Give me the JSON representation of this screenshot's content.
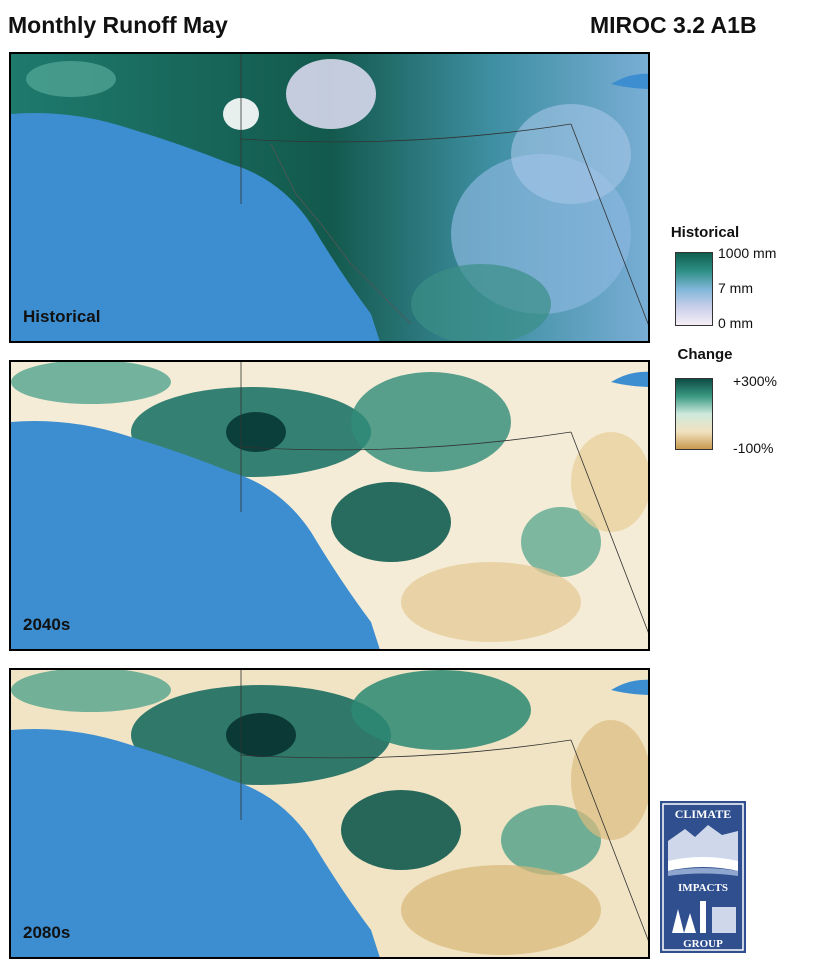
{
  "header": {
    "title": "Monthly Runoff May",
    "model": "MIROC 3.2 A1B"
  },
  "panels": [
    {
      "label": "Historical",
      "scale": "historical"
    },
    {
      "label": "2040s",
      "scale": "change"
    },
    {
      "label": "2080s",
      "scale": "change"
    }
  ],
  "legend": {
    "historical": {
      "title": "Historical",
      "ticks": [
        "1000 mm",
        "7 mm",
        "0 mm"
      ],
      "colors": [
        "#0f5f4e",
        "#2e8f85",
        "#7fb6d8",
        "#c9cfe9",
        "#f6eef7"
      ]
    },
    "change": {
      "title": "Change",
      "ticks": [
        "+300%",
        "-100%"
      ],
      "colors": [
        "#0d4c44",
        "#3c9a84",
        "#cde9dd",
        "#f1e2c0",
        "#c79a4e"
      ]
    }
  },
  "logo": {
    "top_text": "CLIMATE",
    "middle_text": "IMPACTS",
    "bottom_text": "GROUP"
  },
  "colors": {
    "ocean": "#3d8ed0",
    "border": "#333333"
  }
}
